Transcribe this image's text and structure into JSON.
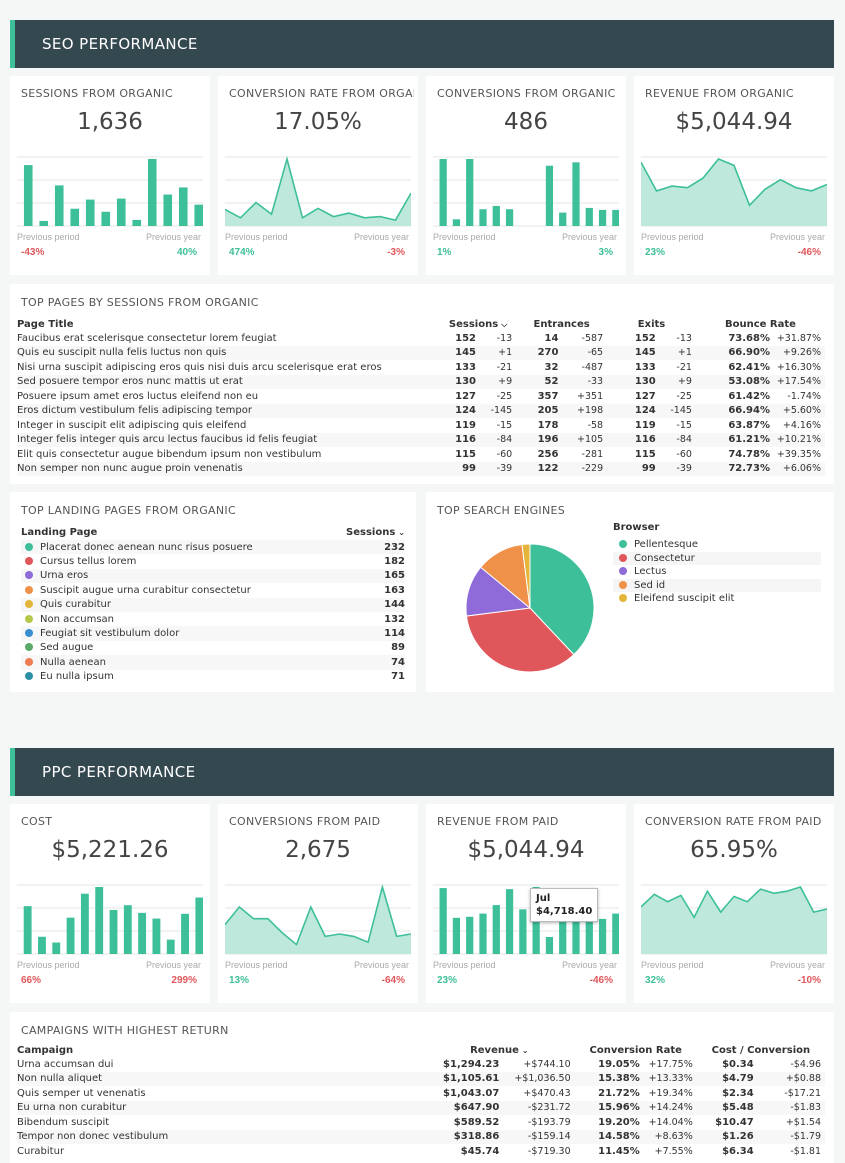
{
  "seo": {
    "header": "SEO PERFORMANCE",
    "kpis": [
      {
        "title": "SESSIONS FROM ORGANIC",
        "value": "1,636",
        "prev_label": "Previous period",
        "prev": "-43%",
        "prev_dir": "neg",
        "year_label": "Previous year",
        "year": "40%",
        "year_dir": "pos",
        "chart_type": "bar",
        "values": [
          6,
          0.5,
          4,
          1.7,
          2.6,
          1.4,
          2.7,
          0.6,
          6.6,
          3.1,
          3.8,
          2.1
        ]
      },
      {
        "title": "CONVERSION RATE FROM ORGANIC",
        "value": "17.05%",
        "prev_label": "Previous period",
        "prev": "474%",
        "prev_dir": "pos",
        "year_label": "Previous year",
        "year": "-3%",
        "year_dir": "neg",
        "chart_type": "area",
        "values": [
          14,
          7,
          20,
          10,
          57,
          7,
          15,
          8,
          11,
          7,
          8,
          5,
          28
        ]
      },
      {
        "title": "CONVERSIONS FROM ORGANIC",
        "value": "486",
        "prev_label": "Previous period",
        "prev": "1%",
        "prev_dir": "pos",
        "year_label": "Previous year",
        "year": "3%",
        "year_dir": "pos",
        "chart_type": "bar",
        "values": [
          10,
          1,
          10,
          2.5,
          3,
          2.5,
          0,
          0,
          9,
          2,
          9.5,
          2.7,
          2.4,
          2.4
        ]
      },
      {
        "title": "REVENUE FROM ORGANIC",
        "value": "$5,044.94",
        "prev_label": "Previous period",
        "prev": "23%",
        "prev_dir": "pos",
        "year_label": "Previous year",
        "year": "-46%",
        "year_dir": "neg",
        "chart_type": "area",
        "values": [
          40,
          22,
          25,
          24,
          30,
          42,
          38,
          13,
          23,
          29,
          24,
          22,
          26
        ]
      }
    ],
    "top_pages": {
      "title": "TOP PAGES BY SESSIONS FROM ORGANIC",
      "columns": [
        "Page Title",
        "Sessions",
        "Entrances",
        "Exits",
        "Bounce Rate"
      ],
      "rows": [
        [
          "Faucibus erat scelerisque consectetur lorem feugiat",
          "152",
          "-13",
          "14",
          "-587",
          "152",
          "-13",
          "73.68%",
          "+31.87%"
        ],
        [
          "Quis eu suscipit nulla felis luctus non quis",
          "145",
          "+1",
          "270",
          "-65",
          "145",
          "+1",
          "66.90%",
          "+9.26%"
        ],
        [
          "Nisi urna suscipit adipiscing eros quis nisi duis arcu scelerisque erat eros",
          "133",
          "-21",
          "32",
          "-487",
          "133",
          "-21",
          "62.41%",
          "+16.30%"
        ],
        [
          "Sed posuere tempor eros nunc mattis ut erat",
          "130",
          "+9",
          "52",
          "-33",
          "130",
          "+9",
          "53.08%",
          "+17.54%"
        ],
        [
          "Posuere ipsum amet eros luctus eleifend non eu",
          "127",
          "-25",
          "357",
          "+351",
          "127",
          "-25",
          "61.42%",
          "-1.74%"
        ],
        [
          "Eros dictum vestibulum felis adipiscing tempor",
          "124",
          "-145",
          "205",
          "+198",
          "124",
          "-145",
          "66.94%",
          "+5.60%"
        ],
        [
          "Integer in suscipit elit adipiscing quis eleifend",
          "119",
          "-15",
          "178",
          "-58",
          "119",
          "-15",
          "63.87%",
          "+4.16%"
        ],
        [
          "Integer felis integer quis arcu lectus faucibus id felis feugiat",
          "116",
          "-84",
          "196",
          "+105",
          "116",
          "-84",
          "61.21%",
          "+10.21%"
        ],
        [
          "Elit quis consectetur augue bibendum ipsum non vestibulum",
          "115",
          "-60",
          "256",
          "-281",
          "115",
          "-60",
          "74.78%",
          "+39.35%"
        ],
        [
          "Non semper non nunc augue proin venenatis",
          "99",
          "-39",
          "122",
          "-229",
          "99",
          "-39",
          "72.73%",
          "+6.06%"
        ]
      ]
    },
    "landing": {
      "title": "TOP LANDING PAGES FROM ORGANIC",
      "columns": [
        "Landing Page",
        "Sessions"
      ],
      "rows": [
        {
          "label": "Placerat donec aenean nunc risus posuere",
          "value": "232",
          "color": "#3dbf9a"
        },
        {
          "label": "Cursus tellus lorem",
          "value": "182",
          "color": "#e0575b"
        },
        {
          "label": "Urna eros",
          "value": "165",
          "color": "#8e6bd8"
        },
        {
          "label": "Suscipit augue urna curabitur consectetur",
          "value": "163",
          "color": "#ef9149"
        },
        {
          "label": "Quis curabitur",
          "value": "144",
          "color": "#e3b53a"
        },
        {
          "label": "Non accumsan",
          "value": "132",
          "color": "#b7c849"
        },
        {
          "label": "Feugiat sit vestibulum dolor",
          "value": "114",
          "color": "#3a8fd0"
        },
        {
          "label": "Sed augue",
          "value": "89",
          "color": "#5aab6b"
        },
        {
          "label": "Nulla aenean",
          "value": "74",
          "color": "#ee7d53"
        },
        {
          "label": "Eu nulla ipsum",
          "value": "71",
          "color": "#2b8fa6"
        }
      ]
    },
    "engines": {
      "title": "TOP SEARCH ENGINES",
      "legend_title": "Browser",
      "items": [
        {
          "label": "Pellentesque",
          "value": 38,
          "color": "#3dbf9a"
        },
        {
          "label": "Consectetur",
          "value": 35,
          "color": "#e0575b"
        },
        {
          "label": "Lectus",
          "value": 13,
          "color": "#8e6bd8"
        },
        {
          "label": "Sed id",
          "value": 12,
          "color": "#ef9149"
        },
        {
          "label": "Eleifend suscipit elit",
          "value": 2,
          "color": "#e3b53a"
        }
      ]
    }
  },
  "ppc": {
    "header": "PPC PERFORMANCE",
    "kpis": [
      {
        "title": "COST",
        "value": "$5,221.26",
        "prev_label": "Previous period",
        "prev": "66%",
        "prev_dir": "neg",
        "year_label": "Previous year",
        "year": "299%",
        "year_dir": "neg",
        "chart_type": "bar",
        "values": [
          5,
          1.8,
          1.2,
          3.8,
          6.3,
          7,
          4.6,
          5.1,
          4.3,
          3.7,
          1.5,
          4.2,
          5.9
        ]
      },
      {
        "title": "CONVERSIONS FROM PAID",
        "value": "2,675",
        "prev_label": "Previous period",
        "prev": "13%",
        "prev_dir": "pos",
        "year_label": "Previous year",
        "year": "-64%",
        "year_dir": "neg",
        "chart_type": "area",
        "values": [
          25,
          40,
          30,
          30,
          18,
          8,
          40,
          15,
          17,
          15,
          10,
          57,
          15,
          17
        ]
      },
      {
        "title": "REVENUE FROM PAID",
        "value": "$5,044.94",
        "prev_label": "Previous period",
        "prev": "23%",
        "prev_dir": "pos",
        "year_label": "Previous year",
        "year": "-46%",
        "year_dir": "neg",
        "chart_type": "bar",
        "values": [
          6.2,
          3.4,
          3.5,
          3.8,
          4.6,
          6.1,
          4.2,
          6.3,
          1.6,
          3.1,
          3.4,
          3.5,
          3.3,
          3.8
        ],
        "tooltip": {
          "label": "Jul",
          "value": "$4,718.40"
        }
      },
      {
        "title": "CONVERSION RATE FROM PAID",
        "value": "65.95%",
        "prev_label": "Previous period",
        "prev": "32%",
        "prev_dir": "pos",
        "year_label": "Previous year",
        "year": "-10%",
        "year_dir": "neg",
        "chart_type": "area",
        "values": [
          45,
          57,
          50,
          56,
          35,
          60,
          40,
          55,
          50,
          62,
          58,
          60,
          64,
          40,
          43
        ]
      }
    ],
    "campaigns": {
      "title": "CAMPAIGNS WITH HIGHEST RETURN",
      "columns": [
        "Campaign",
        "Revenue",
        "Conversion Rate",
        "Cost / Conversion"
      ],
      "rows": [
        [
          "Urna accumsan dui",
          "$1,294.23",
          "+$744.10",
          "19.05%",
          "+17.75%",
          "$0.34",
          "-$4.96"
        ],
        [
          "Non nulla aliquet",
          "$1,105.61",
          "+$1,036.50",
          "15.38%",
          "+13.33%",
          "$4.79",
          "+$0.88"
        ],
        [
          "Quis semper ut venenatis",
          "$1,043.07",
          "+$470.43",
          "21.72%",
          "+19.34%",
          "$2.34",
          "-$17.21"
        ],
        [
          "Eu urna non curabitur",
          "$647.90",
          "-$231.72",
          "15.96%",
          "+14.24%",
          "$5.48",
          "-$1.83"
        ],
        [
          "Bibendum suscipit",
          "$589.52",
          "-$193.79",
          "19.20%",
          "+14.04%",
          "$10.47",
          "+$1.54"
        ],
        [
          "Tempor non donec vestibulum",
          "$318.86",
          "-$159.14",
          "14.58%",
          "+8.63%",
          "$1.26",
          "-$1.79"
        ],
        [
          "Curabitur",
          "$45.74",
          "-$719.30",
          "11.45%",
          "+7.55%",
          "$6.34",
          "-$1.81"
        ]
      ]
    }
  },
  "colors": {
    "accent": "#3dbf9a",
    "area_fill": "#bfe8dc",
    "negative": "#e0575b",
    "header_bg": "#344850"
  }
}
